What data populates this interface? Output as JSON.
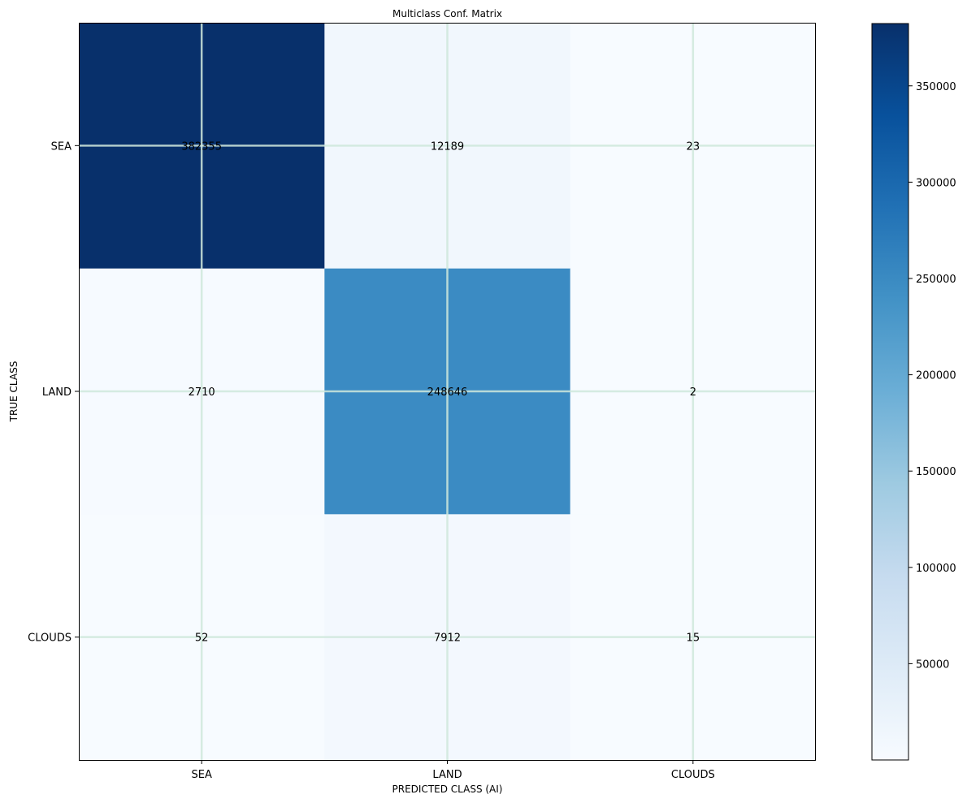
{
  "chart_data": {
    "type": "heatmap",
    "title": "Multiclass Conf. Matrix",
    "xlabel": "PREDICTED CLASS (AI)",
    "ylabel": "TRUE CLASS",
    "x_categories": [
      "SEA",
      "LAND",
      "CLOUDS"
    ],
    "y_categories": [
      "SEA",
      "LAND",
      "CLOUDS"
    ],
    "values": [
      [
        382355,
        12189,
        23
      ],
      [
        2710,
        248646,
        2
      ],
      [
        52,
        7912,
        15
      ]
    ],
    "colormap": "Blues",
    "colormap_stops": [
      "#f7fbff",
      "#deebf7",
      "#c6dbef",
      "#9ecae1",
      "#6baed6",
      "#4292c6",
      "#2171b5",
      "#08519c",
      "#08306b"
    ],
    "vmin": 2,
    "vmax": 382355,
    "grid": true,
    "grid_color": "#cfe8dc",
    "colorbar": {
      "ticks": [
        50000,
        100000,
        150000,
        200000,
        250000,
        300000,
        350000
      ]
    }
  }
}
